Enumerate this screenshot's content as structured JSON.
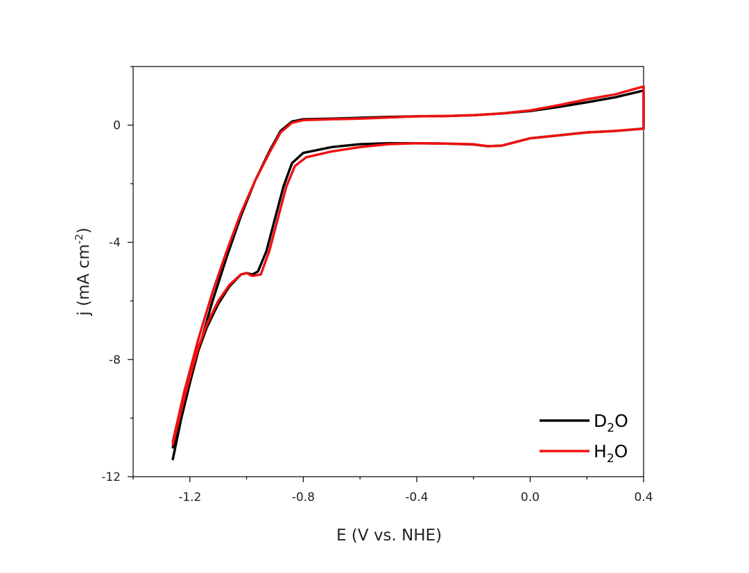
{
  "chart_data": {
    "type": "line",
    "title": "",
    "xlabel": "E (V vs. NHE)",
    "ylabel": {
      "base": "j (mA cm",
      "sup": "-2",
      "tail": ")"
    },
    "xlim": [
      -1.4,
      0.4
    ],
    "ylim": [
      -12,
      2
    ],
    "xticks": [
      -1.2,
      -0.8,
      -0.4,
      0.0,
      0.4
    ],
    "xtick_labels": [
      "-1.2",
      "-0.8",
      "-0.4",
      "0.0",
      "0.4"
    ],
    "yticks": [
      0,
      -4,
      -8,
      -12
    ],
    "ytick_labels": [
      "0",
      "-4",
      "-8",
      "-12"
    ],
    "x_minor_ticks": [
      -1.4,
      -1.0,
      -0.6,
      -0.2,
      0.2
    ],
    "y_minor_ticks": [
      2,
      -2,
      -6,
      -10
    ],
    "legend": {
      "position": "bottom-right"
    },
    "series": [
      {
        "name": "D2O",
        "label": {
          "base": "D",
          "sub": "2",
          "tail": "O"
        },
        "color": "#000000",
        "points": [
          [
            -1.26,
            -11.4
          ],
          [
            -1.23,
            -10.0
          ],
          [
            -1.2,
            -8.8
          ],
          [
            -1.17,
            -7.7
          ],
          [
            -1.14,
            -6.9
          ],
          [
            -1.1,
            -6.1
          ],
          [
            -1.06,
            -5.5
          ],
          [
            -1.02,
            -5.1
          ],
          [
            -1.0,
            -5.05
          ],
          [
            -0.98,
            -5.1
          ],
          [
            -0.96,
            -5.0
          ],
          [
            -0.93,
            -4.3
          ],
          [
            -0.9,
            -3.2
          ],
          [
            -0.87,
            -2.1
          ],
          [
            -0.84,
            -1.3
          ],
          [
            -0.8,
            -0.95
          ],
          [
            -0.7,
            -0.75
          ],
          [
            -0.6,
            -0.65
          ],
          [
            -0.5,
            -0.62
          ],
          [
            -0.4,
            -0.62
          ],
          [
            -0.3,
            -0.63
          ],
          [
            -0.2,
            -0.66
          ],
          [
            -0.15,
            -0.72
          ],
          [
            -0.1,
            -0.7
          ],
          [
            0.0,
            -0.45
          ],
          [
            0.1,
            -0.35
          ],
          [
            0.2,
            -0.25
          ],
          [
            0.3,
            -0.2
          ],
          [
            0.4,
            -0.12
          ],
          [
            0.4,
            1.18
          ],
          [
            0.3,
            0.95
          ],
          [
            0.2,
            0.78
          ],
          [
            0.1,
            0.62
          ],
          [
            0.0,
            0.48
          ],
          [
            -0.1,
            0.4
          ],
          [
            -0.2,
            0.34
          ],
          [
            -0.3,
            0.31
          ],
          [
            -0.4,
            0.3
          ],
          [
            -0.5,
            0.28
          ],
          [
            -0.6,
            0.25
          ],
          [
            -0.7,
            0.22
          ],
          [
            -0.8,
            0.2
          ],
          [
            -0.84,
            0.12
          ],
          [
            -0.88,
            -0.2
          ],
          [
            -0.92,
            -0.9
          ],
          [
            -0.97,
            -1.9
          ],
          [
            -1.02,
            -3.1
          ],
          [
            -1.07,
            -4.5
          ],
          [
            -1.12,
            -6.0
          ],
          [
            -1.17,
            -7.7
          ],
          [
            -1.22,
            -9.5
          ],
          [
            -1.26,
            -11.0
          ]
        ]
      },
      {
        "name": "H2O",
        "label": {
          "base": "H",
          "sub": "2",
          "tail": "O"
        },
        "color": "#ee1111",
        "points": [
          [
            -1.26,
            -10.9
          ],
          [
            -1.23,
            -9.7
          ],
          [
            -1.2,
            -8.6
          ],
          [
            -1.17,
            -7.6
          ],
          [
            -1.14,
            -6.8
          ],
          [
            -1.1,
            -6.0
          ],
          [
            -1.06,
            -5.45
          ],
          [
            -1.02,
            -5.1
          ],
          [
            -1.0,
            -5.05
          ],
          [
            -0.98,
            -5.15
          ],
          [
            -0.95,
            -5.1
          ],
          [
            -0.92,
            -4.3
          ],
          [
            -0.89,
            -3.2
          ],
          [
            -0.86,
            -2.1
          ],
          [
            -0.83,
            -1.4
          ],
          [
            -0.79,
            -1.1
          ],
          [
            -0.7,
            -0.9
          ],
          [
            -0.6,
            -0.75
          ],
          [
            -0.5,
            -0.65
          ],
          [
            -0.4,
            -0.62
          ],
          [
            -0.3,
            -0.63
          ],
          [
            -0.2,
            -0.65
          ],
          [
            -0.15,
            -0.72
          ],
          [
            -0.1,
            -0.7
          ],
          [
            0.0,
            -0.45
          ],
          [
            0.1,
            -0.35
          ],
          [
            0.2,
            -0.25
          ],
          [
            0.3,
            -0.2
          ],
          [
            0.4,
            -0.12
          ],
          [
            0.4,
            1.32
          ],
          [
            0.3,
            1.05
          ],
          [
            0.2,
            0.88
          ],
          [
            0.1,
            0.68
          ],
          [
            0.0,
            0.5
          ],
          [
            -0.1,
            0.4
          ],
          [
            -0.2,
            0.34
          ],
          [
            -0.3,
            0.31
          ],
          [
            -0.4,
            0.3
          ],
          [
            -0.5,
            0.26
          ],
          [
            -0.6,
            0.22
          ],
          [
            -0.7,
            0.2
          ],
          [
            -0.8,
            0.17
          ],
          [
            -0.84,
            0.08
          ],
          [
            -0.88,
            -0.25
          ],
          [
            -0.92,
            -0.95
          ],
          [
            -0.97,
            -1.9
          ],
          [
            -1.02,
            -3.0
          ],
          [
            -1.07,
            -4.3
          ],
          [
            -1.12,
            -5.7
          ],
          [
            -1.17,
            -7.3
          ],
          [
            -1.22,
            -9.1
          ],
          [
            -1.26,
            -10.8
          ]
        ]
      }
    ]
  }
}
